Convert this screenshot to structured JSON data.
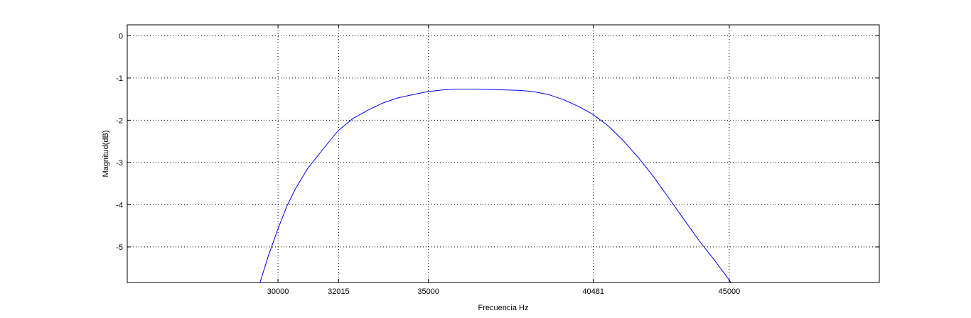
{
  "chart_data": {
    "type": "line",
    "title": "",
    "xlabel": "Frecuencia Hz",
    "ylabel": "Magnitud(dB)",
    "xlim": [
      25000,
      50000
    ],
    "ylim": [
      -5.85,
      0.25
    ],
    "xticks": [
      30000,
      32015,
      35000,
      40481,
      45000
    ],
    "xtick_labels": [
      "30000",
      "32015",
      "35000",
      "40481",
      "45000"
    ],
    "yticks": [
      0,
      -1,
      -2,
      -3,
      -4,
      -5
    ],
    "ytick_labels": [
      "0",
      "-1",
      "-2",
      "-3",
      "-4",
      "-5"
    ],
    "grid": true,
    "line_color": "#0000ff",
    "series": [
      {
        "x": [
          29400,
          29700,
          30000,
          30300,
          30600,
          31000,
          31500,
          32015,
          32500,
          33000,
          33500,
          34000,
          34500,
          35000,
          35500,
          36000,
          36500,
          37000,
          37500,
          38000,
          38500,
          39000,
          39500,
          40000,
          40481,
          41000,
          41500,
          42000,
          42500,
          43000,
          43500,
          44000,
          44500,
          45000,
          45100
        ],
        "y": [
          -5.88,
          -5.2,
          -4.6,
          -4.05,
          -3.62,
          -3.15,
          -2.7,
          -2.25,
          -1.97,
          -1.77,
          -1.6,
          -1.48,
          -1.4,
          -1.33,
          -1.29,
          -1.27,
          -1.27,
          -1.28,
          -1.29,
          -1.3,
          -1.33,
          -1.4,
          -1.52,
          -1.68,
          -1.87,
          -2.15,
          -2.5,
          -2.9,
          -3.35,
          -3.85,
          -4.35,
          -4.85,
          -5.3,
          -5.78,
          -5.88
        ]
      }
    ]
  }
}
